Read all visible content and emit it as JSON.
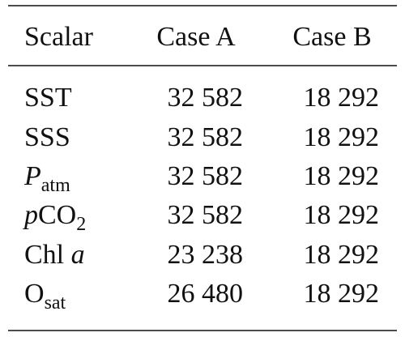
{
  "table": {
    "header": [
      "Scalar",
      "Case A",
      "Case B"
    ],
    "rows": [
      {
        "label": [
          {
            "text": "SST",
            "style": "normal"
          }
        ],
        "values": [
          "32 582",
          "18 292"
        ]
      },
      {
        "label": [
          {
            "text": "SSS",
            "style": "normal"
          }
        ],
        "values": [
          "32 582",
          "18 292"
        ]
      },
      {
        "label": [
          {
            "text": "P",
            "style": "italic"
          },
          {
            "text": "atm",
            "style": "sub"
          }
        ],
        "values": [
          "32 582",
          "18 292"
        ]
      },
      {
        "label": [
          {
            "text": "p",
            "style": "italic"
          },
          {
            "text": "CO",
            "style": "normal"
          },
          {
            "text": "2",
            "style": "sub"
          }
        ],
        "values": [
          "32 582",
          "18 292"
        ]
      },
      {
        "label": [
          {
            "text": "Chl ",
            "style": "normal"
          },
          {
            "text": "a",
            "style": "italic"
          }
        ],
        "values": [
          "23 238",
          "18 292"
        ]
      },
      {
        "label": [
          {
            "text": "O",
            "style": "normal"
          },
          {
            "text": "sat",
            "style": "sub"
          }
        ],
        "values": [
          "26 480",
          "18 292"
        ]
      }
    ]
  }
}
